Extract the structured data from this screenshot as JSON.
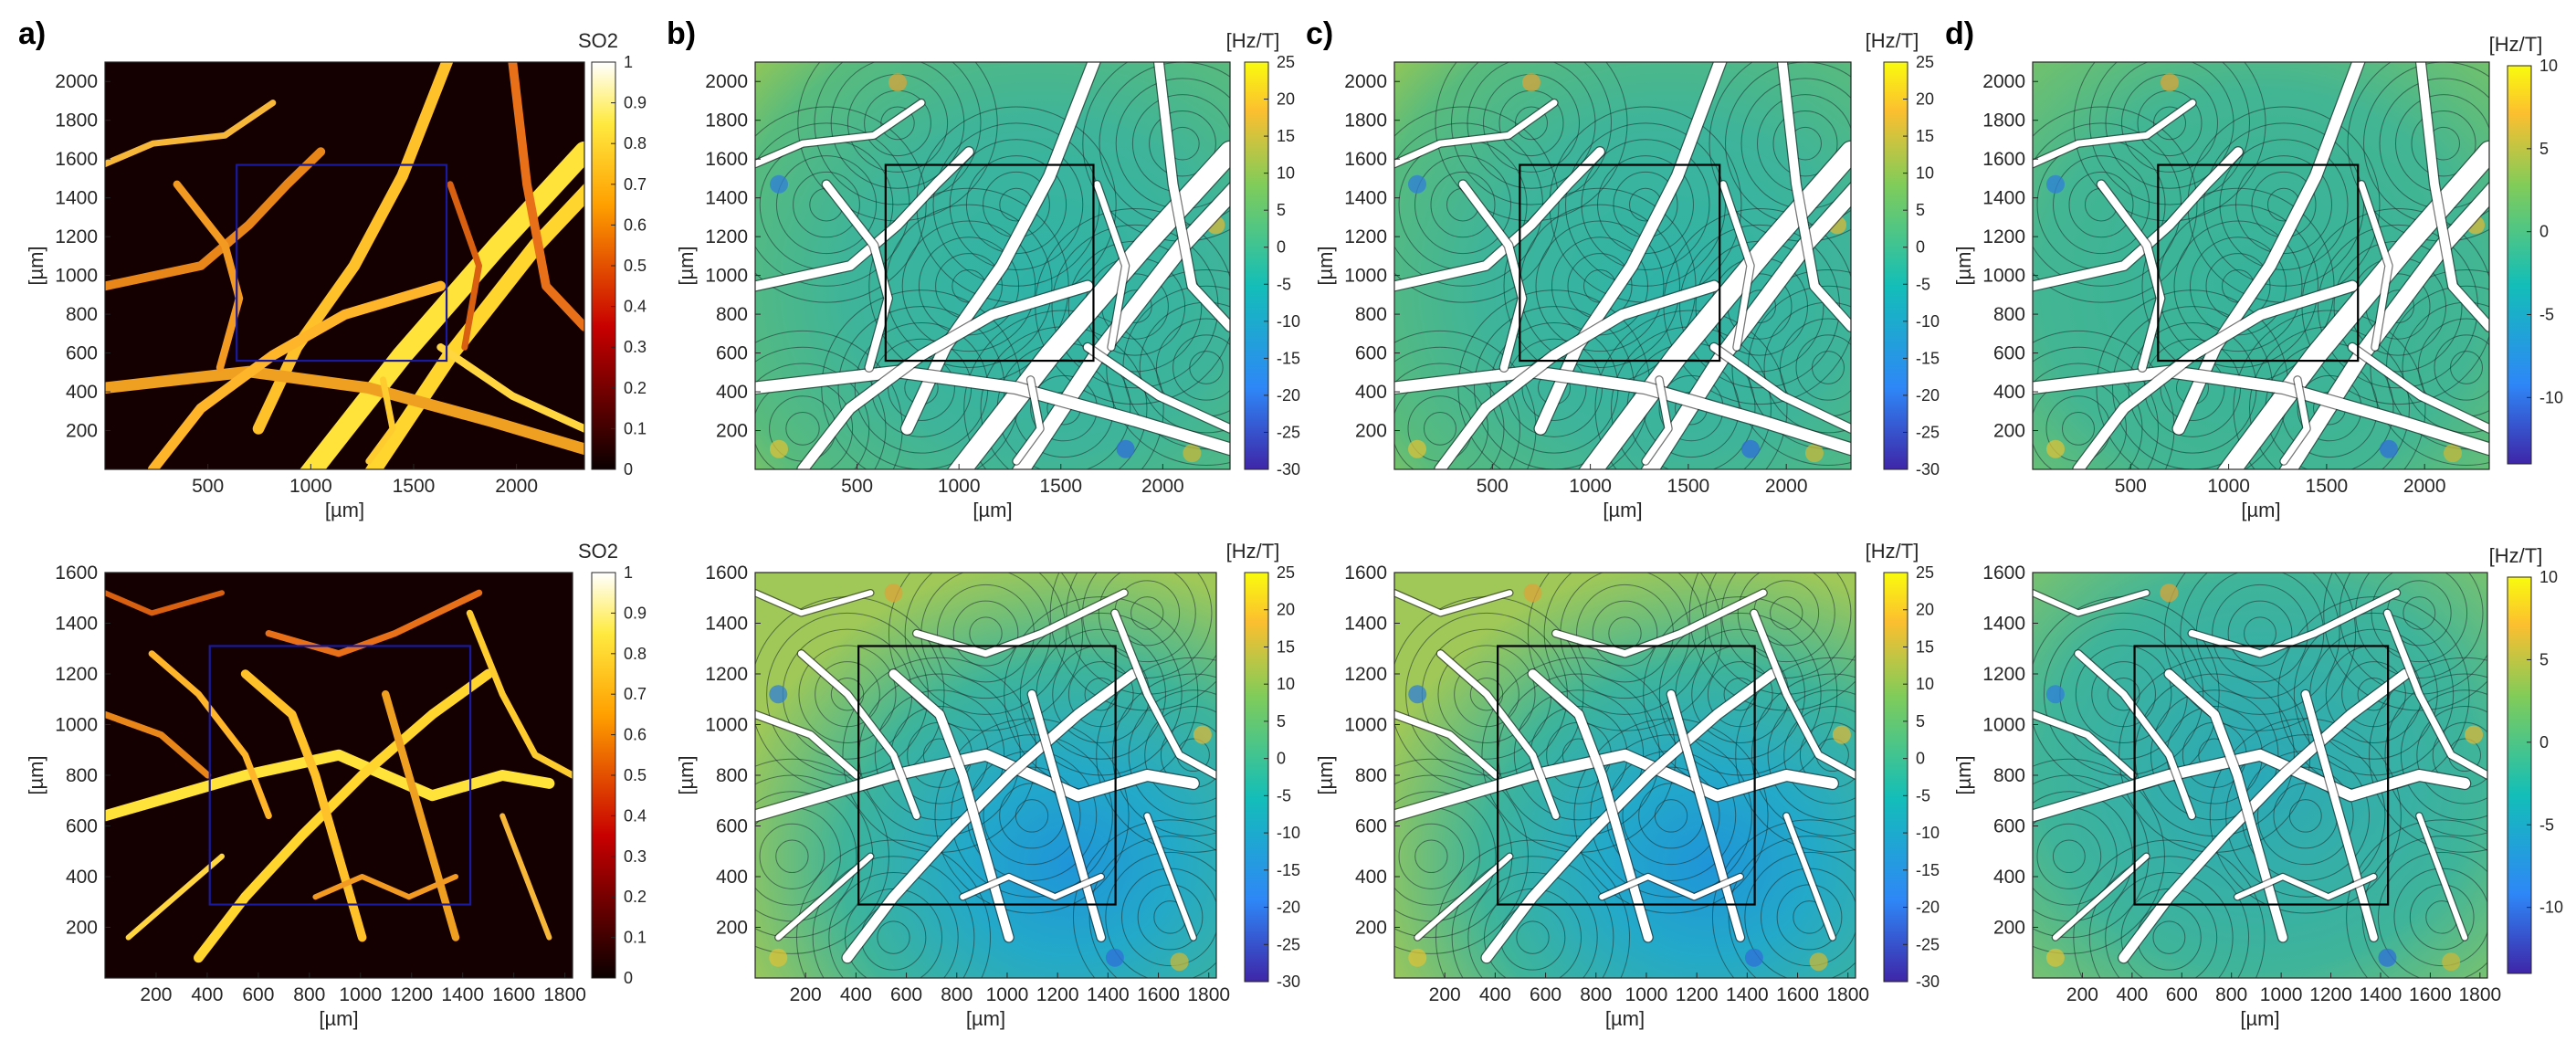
{
  "panel_letters": [
    "a)",
    "b)",
    "c)",
    "d)"
  ],
  "chart_data": [
    {
      "type": "heatmap",
      "panel": "a)",
      "row": "top",
      "xlabel": "[µm]",
      "ylabel": "[µm]",
      "xticks": [
        500,
        1000,
        1500,
        2000
      ],
      "yticks": [
        200,
        400,
        600,
        800,
        1000,
        1200,
        1400,
        1600,
        1800,
        2000
      ],
      "xlim": [
        0,
        2330
      ],
      "ylim": [
        0,
        2100
      ],
      "colorbar": {
        "title": "SO2",
        "ticks": [
          0,
          0.1,
          0.2,
          0.3,
          0.4,
          0.5,
          0.6,
          0.7,
          0.8,
          0.9,
          1
        ],
        "lim": [
          0,
          1
        ],
        "colormap": "hot"
      },
      "roi": {
        "x": [
          640,
          1660
        ],
        "y": [
          560,
          1570
        ],
        "color": "#1a1a9e"
      }
    },
    {
      "type": "heatmap",
      "panel": "b)",
      "row": "top",
      "xlabel": "[µm]",
      "ylabel": "[µm]",
      "xticks": [
        500,
        1000,
        1500,
        2000
      ],
      "yticks": [
        200,
        400,
        600,
        800,
        1000,
        1200,
        1400,
        1600,
        1800,
        2000
      ],
      "xlim": [
        0,
        2330
      ],
      "ylim": [
        0,
        2100
      ],
      "colorbar": {
        "title": "[Hz/T]",
        "ticks": [
          -30,
          -25,
          -20,
          -15,
          -10,
          -5,
          0,
          5,
          10,
          15,
          20,
          25
        ],
        "lim": [
          -30,
          25
        ],
        "colormap": "parula"
      },
      "roi": {
        "x": [
          640,
          1660
        ],
        "y": [
          560,
          1570
        ],
        "color": "#000000"
      }
    },
    {
      "type": "heatmap",
      "panel": "c)",
      "row": "top",
      "xlabel": "[µm]",
      "ylabel": "[µm]",
      "xticks": [
        500,
        1000,
        1500,
        2000
      ],
      "yticks": [
        200,
        400,
        600,
        800,
        1000,
        1200,
        1400,
        1600,
        1800,
        2000
      ],
      "xlim": [
        0,
        2330
      ],
      "ylim": [
        0,
        2100
      ],
      "colorbar": {
        "title": "[Hz/T]",
        "ticks": [
          -30,
          -25,
          -20,
          -15,
          -10,
          -5,
          0,
          5,
          10,
          15,
          20,
          25
        ],
        "lim": [
          -30,
          25
        ],
        "colormap": "parula"
      },
      "roi": {
        "x": [
          640,
          1660
        ],
        "y": [
          560,
          1570
        ],
        "color": "#000000"
      }
    },
    {
      "type": "heatmap",
      "panel": "d)",
      "row": "top",
      "xlabel": "[µm]",
      "ylabel": "[µm]",
      "xticks": [
        500,
        1000,
        1500,
        2000
      ],
      "yticks": [
        200,
        400,
        600,
        800,
        1000,
        1200,
        1400,
        1600,
        1800,
        2000
      ],
      "xlim": [
        0,
        2330
      ],
      "ylim": [
        0,
        2100
      ],
      "colorbar": {
        "title": "[Hz/T]",
        "ticks": [
          -10,
          -5,
          0,
          5,
          10
        ],
        "lim": [
          -14,
          10
        ],
        "colormap": "parula"
      },
      "roi": {
        "x": [
          640,
          1660
        ],
        "y": [
          560,
          1570
        ],
        "color": "#000000"
      }
    },
    {
      "type": "heatmap",
      "panel": "a)",
      "row": "bottom",
      "xlabel": "[µm]",
      "ylabel": "[µm]",
      "xticks": [
        200,
        400,
        600,
        800,
        1000,
        1200,
        1400,
        1600,
        1800
      ],
      "yticks": [
        200,
        400,
        600,
        800,
        1000,
        1200,
        1400,
        1600
      ],
      "xlim": [
        0,
        1830
      ],
      "ylim": [
        0,
        1600
      ],
      "colorbar": {
        "title": "SO2",
        "ticks": [
          0,
          0.1,
          0.2,
          0.3,
          0.4,
          0.5,
          0.6,
          0.7,
          0.8,
          0.9,
          1
        ],
        "lim": [
          0,
          1
        ],
        "colormap": "hot"
      },
      "roi": {
        "x": [
          410,
          1430
        ],
        "y": [
          290,
          1310
        ],
        "color": "#1a1a9e"
      }
    },
    {
      "type": "heatmap",
      "panel": "b)",
      "row": "bottom",
      "xlabel": "[µm]",
      "ylabel": "[µm]",
      "xticks": [
        200,
        400,
        600,
        800,
        1000,
        1200,
        1400,
        1600,
        1800
      ],
      "yticks": [
        200,
        400,
        600,
        800,
        1000,
        1200,
        1400,
        1600
      ],
      "xlim": [
        0,
        1830
      ],
      "ylim": [
        0,
        1600
      ],
      "colorbar": {
        "title": "[Hz/T]",
        "ticks": [
          -30,
          -25,
          -20,
          -15,
          -10,
          -5,
          0,
          5,
          10,
          15,
          20,
          25
        ],
        "lim": [
          -30,
          25
        ],
        "colormap": "parula"
      },
      "roi": {
        "x": [
          410,
          1430
        ],
        "y": [
          290,
          1310
        ],
        "color": "#000000"
      }
    },
    {
      "type": "heatmap",
      "panel": "c)",
      "row": "bottom",
      "xlabel": "[µm]",
      "ylabel": "[µm]",
      "xticks": [
        200,
        400,
        600,
        800,
        1000,
        1200,
        1400,
        1600,
        1800
      ],
      "yticks": [
        200,
        400,
        600,
        800,
        1000,
        1200,
        1400,
        1600
      ],
      "xlim": [
        0,
        1830
      ],
      "ylim": [
        0,
        1600
      ],
      "colorbar": {
        "title": "[Hz/T]",
        "ticks": [
          -30,
          -25,
          -20,
          -15,
          -10,
          -5,
          0,
          5,
          10,
          15,
          20,
          25
        ],
        "lim": [
          -30,
          25
        ],
        "colormap": "parula"
      },
      "roi": {
        "x": [
          410,
          1430
        ],
        "y": [
          290,
          1310
        ],
        "color": "#000000"
      }
    },
    {
      "type": "heatmap",
      "panel": "d)",
      "row": "bottom",
      "xlabel": "[µm]",
      "ylabel": "[µm]",
      "xticks": [
        200,
        400,
        600,
        800,
        1000,
        1200,
        1400,
        1600,
        1800
      ],
      "yticks": [
        200,
        400,
        600,
        800,
        1000,
        1200,
        1400,
        1600
      ],
      "xlim": [
        0,
        1830
      ],
      "ylim": [
        0,
        1600
      ],
      "colorbar": {
        "title": "[Hz/T]",
        "ticks": [
          -10,
          -5,
          0,
          5,
          10
        ],
        "lim": [
          -14,
          10
        ],
        "colormap": "parula"
      },
      "roi": {
        "x": [
          410,
          1430
        ],
        "y": [
          290,
          1310
        ],
        "color": "#000000"
      }
    }
  ]
}
